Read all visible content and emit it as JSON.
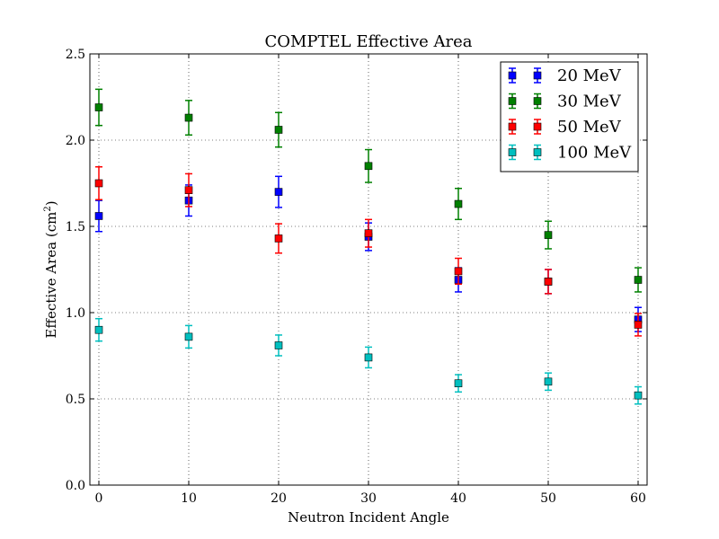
{
  "chart_data": {
    "type": "scatter",
    "title": "COMPTEL Effective Area",
    "xlabel": "Neutron Incident Angle",
    "ylabel": "Effective Area (cm",
    "ylabel_sup": "2",
    "ylabel_end": ")",
    "xlim": [
      -1,
      61
    ],
    "ylim": [
      0,
      2.5
    ],
    "x_ticks": [
      0,
      10,
      20,
      30,
      40,
      50,
      60
    ],
    "x_tick_labels": [
      "0",
      "10",
      "20",
      "30",
      "40",
      "50",
      "60"
    ],
    "y_ticks": [
      0,
      0.5,
      1,
      1.5,
      2,
      2.5
    ],
    "y_tick_labels": [
      "0.0",
      "0.5",
      "1.0",
      "1.5",
      "2.0",
      "2.5"
    ],
    "grid": true,
    "legend_position": "top-right",
    "series": [
      {
        "name": "20 MeV",
        "color": "#0000ff",
        "x": [
          0,
          10,
          20,
          30,
          40,
          50,
          60
        ],
        "y": [
          1.56,
          1.65,
          1.7,
          1.44,
          1.19,
          1.18,
          0.96
        ],
        "err": [
          0.09,
          0.09,
          0.09,
          0.08,
          0.07,
          0.07,
          0.07
        ]
      },
      {
        "name": "30 MeV",
        "color": "#008000",
        "x": [
          0,
          10,
          20,
          30,
          40,
          50,
          60
        ],
        "y": [
          2.19,
          2.13,
          2.06,
          1.85,
          1.63,
          1.45,
          1.19
        ],
        "err": [
          0.105,
          0.1,
          0.1,
          0.095,
          0.09,
          0.08,
          0.07
        ]
      },
      {
        "name": "50 MeV",
        "color": "#ff0000",
        "x": [
          0,
          10,
          20,
          30,
          40,
          50,
          60
        ],
        "y": [
          1.75,
          1.71,
          1.43,
          1.46,
          1.24,
          1.18,
          0.93
        ],
        "err": [
          0.095,
          0.095,
          0.085,
          0.08,
          0.075,
          0.07,
          0.065
        ]
      },
      {
        "name": "100 MeV",
        "color": "#00bfbf",
        "x": [
          0,
          10,
          20,
          30,
          40,
          50,
          60
        ],
        "y": [
          0.9,
          0.86,
          0.81,
          0.74,
          0.59,
          0.6,
          0.52
        ],
        "err": [
          0.065,
          0.065,
          0.06,
          0.06,
          0.05,
          0.05,
          0.05
        ]
      }
    ]
  }
}
